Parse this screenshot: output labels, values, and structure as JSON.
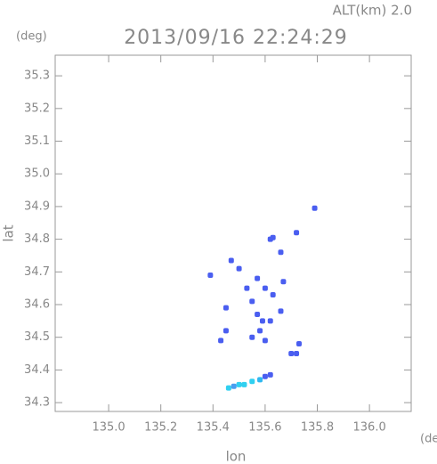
{
  "chart_data": {
    "type": "scatter",
    "title": "2013/09/16 22:24:29",
    "subtitle": "ALT(km) 2.0",
    "y_unit": "(deg)",
    "x_unit": "(deg)",
    "x_label": "lon",
    "y_label": "lat",
    "xlim": [
      134.795,
      136.16
    ],
    "ylim": [
      34.273,
      35.363
    ],
    "xticks": [
      {
        "value": 135.0,
        "label": "135.0"
      },
      135.2,
      135.4,
      135.6,
      135.8,
      {
        "value": 136.0,
        "label": "136.0"
      }
    ],
    "yticks": [
      34.3,
      34.4,
      34.5,
      34.6,
      34.7,
      34.8,
      34.9,
      {
        "value": 35.0,
        "label": "35.0"
      },
      35.1,
      35.2,
      35.3
    ],
    "x": [
      135.79,
      135.62,
      135.63,
      135.66,
      135.72,
      135.39,
      135.5,
      135.47,
      135.57,
      135.67,
      135.53,
      135.6,
      135.63,
      135.55,
      135.45,
      135.57,
      135.59,
      135.62,
      135.66,
      135.58,
      135.6,
      135.55,
      135.45,
      135.43,
      135.73,
      135.7,
      135.72,
      135.62,
      135.6,
      135.58,
      135.55,
      135.5,
      135.46,
      135.48,
      135.52
    ],
    "values": [
      34.895,
      34.8,
      34.805,
      34.76,
      34.82,
      34.69,
      34.71,
      34.735,
      34.68,
      34.67,
      34.65,
      34.65,
      34.63,
      34.61,
      34.59,
      34.57,
      34.55,
      34.55,
      34.58,
      34.52,
      34.49,
      34.5,
      34.52,
      34.49,
      34.48,
      34.45,
      34.45,
      34.385,
      34.38,
      34.37,
      34.365,
      34.355,
      34.345,
      34.35,
      34.355
    ],
    "colors": [
      "#4a5ef0",
      "#4a5ef0",
      "#4a5ef0",
      "#4a5ef0",
      "#4a5ef0",
      "#4a5ef0",
      "#4a5ef0",
      "#4a5ef0",
      "#4a5ef0",
      "#4a5ef0",
      "#4a5ef0",
      "#4a5ef0",
      "#4a5ef0",
      "#4a5ef0",
      "#4a5ef0",
      "#4a5ef0",
      "#4a5ef0",
      "#4a5ef0",
      "#4a5ef0",
      "#4a5ef0",
      "#4a5ef0",
      "#4a5ef0",
      "#4a5ef0",
      "#4a5ef0",
      "#4a5ef0",
      "#4a5ef0",
      "#4a5ef0",
      "#4a5ef0",
      "#4a5ef0",
      "#30b8f0",
      "#30d0f0",
      "#30d0f0",
      "#30d0f0",
      "#4a9ef0",
      "#30d0f0"
    ]
  }
}
